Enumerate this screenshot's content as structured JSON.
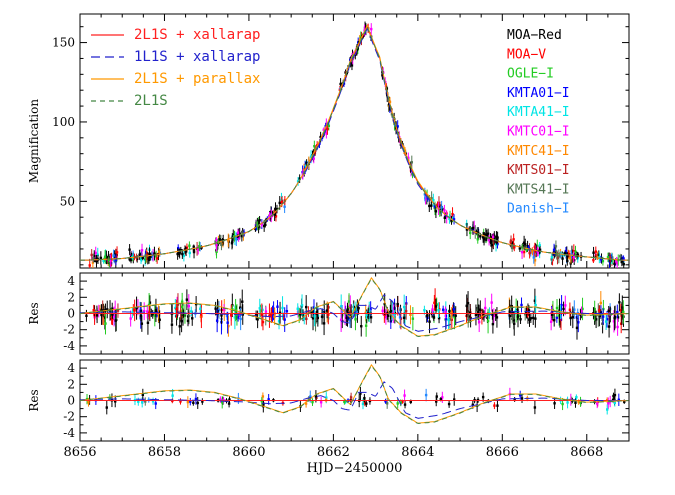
{
  "chart_data": {
    "type": "line",
    "xlabel": "HJD−2450000",
    "x_ticks": [
      8656,
      8658,
      8660,
      8662,
      8664,
      8666,
      8668
    ],
    "xlim": [
      8656,
      8669
    ],
    "panels": [
      {
        "name": "magnification",
        "ylabel": "Magnification",
        "ylim": [
          8,
          168
        ],
        "y_ticks": [
          50,
          100,
          150
        ],
        "data_points": [
          {
            "x": 8656.2,
            "y": 13
          },
          {
            "x": 8657.0,
            "y": 14
          },
          {
            "x": 8658.0,
            "y": 17
          },
          {
            "x": 8659.0,
            "y": 22
          },
          {
            "x": 8660.0,
            "y": 31
          },
          {
            "x": 8660.5,
            "y": 40
          },
          {
            "x": 8661.0,
            "y": 55
          },
          {
            "x": 8661.5,
            "y": 78
          },
          {
            "x": 8662.0,
            "y": 108
          },
          {
            "x": 8662.4,
            "y": 138
          },
          {
            "x": 8662.8,
            "y": 160
          },
          {
            "x": 8663.1,
            "y": 140
          },
          {
            "x": 8663.5,
            "y": 95
          },
          {
            "x": 8664.0,
            "y": 62
          },
          {
            "x": 8664.5,
            "y": 45
          },
          {
            "x": 8665.0,
            "y": 35
          },
          {
            "x": 8666.0,
            "y": 24
          },
          {
            "x": 8667.0,
            "y": 18
          },
          {
            "x": 8668.0,
            "y": 15
          },
          {
            "x": 8668.8,
            "y": 13
          }
        ]
      },
      {
        "name": "residuals-2L1S-xallarap",
        "ylabel": "Res",
        "ylim": [
          -5,
          5
        ],
        "y_ticks": [
          -4,
          -2,
          0,
          2,
          4
        ]
      },
      {
        "name": "residuals-comparison",
        "ylabel": "Res",
        "ylim": [
          -5,
          5
        ],
        "y_ticks": [
          -4,
          -2,
          0,
          2,
          4
        ]
      }
    ],
    "models": [
      {
        "name": "2L1S + xallarap",
        "color": "#ff2020",
        "dash": "solid",
        "res_x": [
          8656,
          8669
        ],
        "res_y": [
          0,
          0
        ]
      },
      {
        "name": "1L1S + xallarap",
        "color": "#2222cc",
        "dash": "long-dash",
        "res_x": [
          8656,
          8657,
          8658,
          8659,
          8660,
          8660.5,
          8661,
          8661.4,
          8661.7,
          8662.0,
          8662.2,
          8662.4,
          8662.6,
          8662.8,
          8663.0,
          8663.2,
          8663.4,
          8663.7,
          8664.0,
          8664.5,
          8665,
          8666,
          8667,
          8668,
          8669
        ],
        "res_y": [
          0.1,
          0.2,
          0.1,
          0.0,
          -0.2,
          -0.4,
          -0.3,
          0.3,
          0.6,
          0.0,
          -1.0,
          -1.2,
          1.0,
          1.0,
          0.5,
          2.3,
          1.5,
          -1.5,
          -2.2,
          -1.8,
          -1.0,
          0.2,
          0.3,
          0.0,
          0.0
        ]
      },
      {
        "name": "2L1S + parallax",
        "color": "#ff9900",
        "dash": "solid",
        "res_x": [
          8656,
          8657,
          8658,
          8658.6,
          8659.2,
          8659.8,
          8660.4,
          8660.8,
          8661.2,
          8661.6,
          8662.0,
          8662.4,
          8662.7,
          8662.9,
          8663.1,
          8663.3,
          8663.6,
          8664.0,
          8664.4,
          8665,
          8665.6,
          8666.2,
          8666.8,
          8667.4,
          8668,
          8668.5,
          8669
        ],
        "res_y": [
          0.0,
          0.6,
          1.2,
          1.3,
          1.0,
          0.2,
          -0.8,
          -1.5,
          -0.8,
          0.8,
          1.5,
          -0.5,
          2.5,
          4.4,
          3.0,
          0.2,
          -1.5,
          -2.8,
          -2.6,
          -1.5,
          -0.2,
          0.8,
          0.8,
          0.2,
          -0.2,
          -0.1,
          0.0
        ]
      },
      {
        "name": "2L1S",
        "color": "#448844",
        "dash": "short-dash",
        "res_x": [
          8656,
          8657,
          8658,
          8658.6,
          8659.2,
          8659.8,
          8660.4,
          8660.8,
          8661.2,
          8661.6,
          8662.0,
          8662.4,
          8662.7,
          8662.9,
          8663.1,
          8663.3,
          8663.6,
          8664.0,
          8664.4,
          8665,
          8665.6,
          8666.2,
          8666.8,
          8667.4,
          8668,
          8668.5,
          8669
        ],
        "res_y": [
          0.0,
          0.55,
          1.15,
          1.25,
          0.95,
          0.15,
          -0.85,
          -1.55,
          -0.85,
          0.75,
          1.45,
          -0.55,
          2.45,
          4.3,
          2.95,
          0.15,
          -1.55,
          -2.85,
          -2.65,
          -1.55,
          -0.25,
          0.75,
          0.75,
          0.15,
          -0.25,
          -0.15,
          0.0
        ]
      }
    ],
    "datasets": [
      {
        "name": "MOA−Red",
        "color": "#000000"
      },
      {
        "name": "MOA−V",
        "color": "#ff0000"
      },
      {
        "name": "OGLE−I",
        "color": "#22cc22"
      },
      {
        "name": "KMTA01−I",
        "color": "#0000ff"
      },
      {
        "name": "KMTA41−I",
        "color": "#00e5e5"
      },
      {
        "name": "KMTC01−I",
        "color": "#ff00ff"
      },
      {
        "name": "KMTC41−I",
        "color": "#ff8800"
      },
      {
        "name": "KMTS01−I",
        "color": "#bb2222"
      },
      {
        "name": "KMTS41−I",
        "color": "#557755"
      },
      {
        "name": "Danish−I",
        "color": "#2288ff"
      }
    ]
  }
}
